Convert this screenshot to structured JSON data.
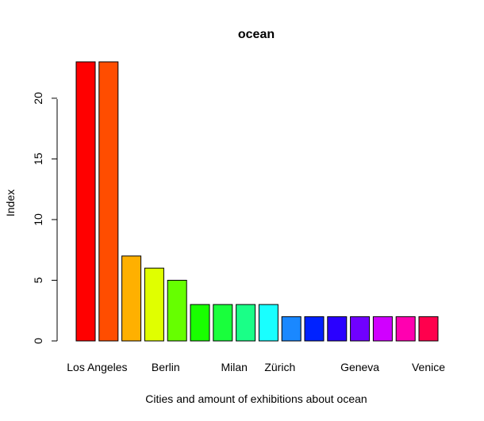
{
  "chart_data": {
    "type": "bar",
    "title": "ocean",
    "xlabel": "Cities and amount of exhibitions about ocean",
    "ylabel": "Index",
    "ylim": [
      0,
      23
    ],
    "yticks": [
      0,
      5,
      10,
      15,
      20
    ],
    "grid": false,
    "legend": "none",
    "values": [
      23,
      23,
      7,
      6,
      5,
      3,
      3,
      3,
      3,
      2,
      2,
      2,
      2,
      2,
      2,
      2
    ],
    "category_labels": [
      {
        "bar_index": 0.5,
        "label": "Los Angeles"
      },
      {
        "bar_index": 3.5,
        "label": "Berlin"
      },
      {
        "bar_index": 6.5,
        "label": "Milan"
      },
      {
        "bar_index": 8.5,
        "label": "Zürich"
      },
      {
        "bar_index": 12,
        "label": "Geneva"
      },
      {
        "bar_index": 15,
        "label": "Venice"
      }
    ],
    "colors": [
      "#ff0000",
      "#ff4d00",
      "#ffb000",
      "#e0ff00",
      "#66ff00",
      "#19ff00",
      "#19ff3c",
      "#1aff87",
      "#19ffff",
      "#1a88ff",
      "#0022ff",
      "#2a00ff",
      "#7000ff",
      "#d000ff",
      "#ff00b0",
      "#ff004d"
    ]
  }
}
